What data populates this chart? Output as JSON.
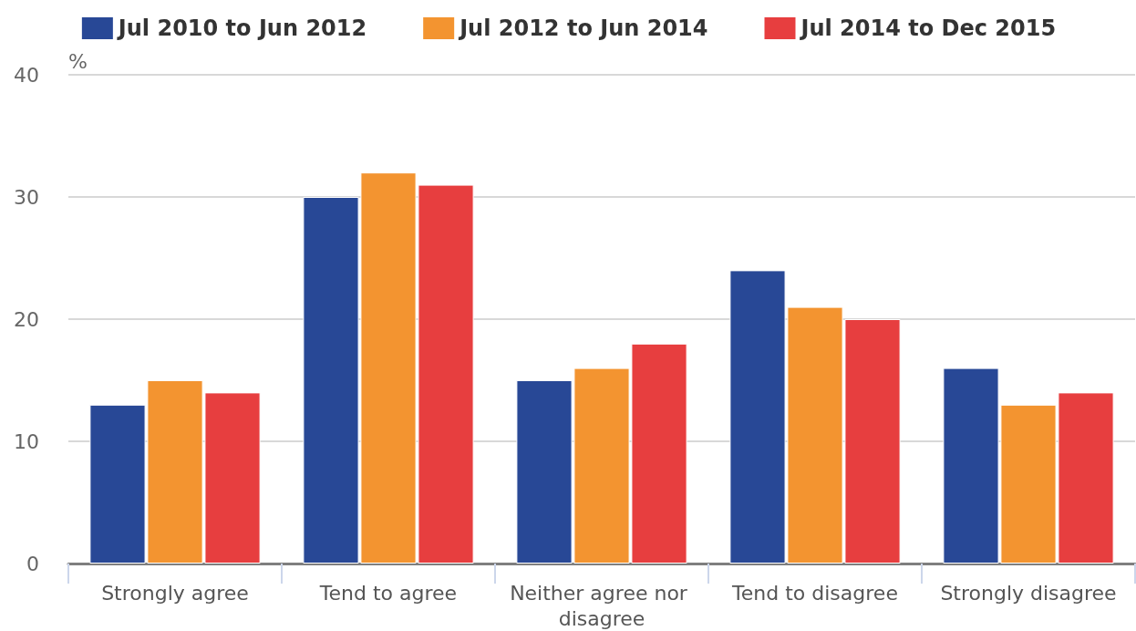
{
  "chart_data": {
    "type": "bar",
    "ylabel": "%",
    "categories": [
      "Strongly agree",
      "Tend to agree",
      "Neither agree nor disagree",
      "Tend to disagree",
      "Strongly disagree"
    ],
    "series": [
      {
        "name": "Jul 2010 to Jun 2012",
        "color": "#284896",
        "values": [
          13,
          30,
          15,
          24,
          16
        ]
      },
      {
        "name": "Jul 2012 to Jun 2014",
        "color": "#f39430",
        "values": [
          15,
          32,
          16,
          21,
          13
        ]
      },
      {
        "name": "Jul 2014 to Dec 2015",
        "color": "#e73e3f",
        "values": [
          14,
          31,
          18,
          20,
          14
        ]
      }
    ],
    "ylim": [
      0,
      40
    ],
    "yticks": [
      0,
      10,
      20,
      30,
      40
    ],
    "grid": "y",
    "legend": "top"
  }
}
